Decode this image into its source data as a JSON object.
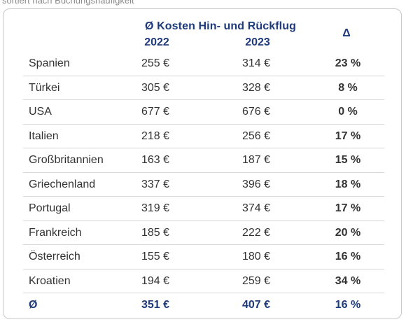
{
  "subtitle": "sortiert nach Buchungshäufigkeit",
  "header": {
    "title": "Ø Kosten Hin- und Rückflug",
    "year_2022": "2022",
    "year_2023": "2023",
    "delta": "Δ"
  },
  "rows": [
    {
      "country": "Spanien",
      "v2022": "255 €",
      "v2023": "314 €",
      "delta": "23 %"
    },
    {
      "country": "Türkei",
      "v2022": "305 €",
      "v2023": "328 €",
      "delta": "8 %"
    },
    {
      "country": "USA",
      "v2022": "677 €",
      "v2023": "676 €",
      "delta": "0 %"
    },
    {
      "country": "Italien",
      "v2022": "218 €",
      "v2023": "256 €",
      "delta": "17 %"
    },
    {
      "country": "Großbritannien",
      "v2022": "163 €",
      "v2023": "187 €",
      "delta": "15 %"
    },
    {
      "country": "Griechenland",
      "v2022": "337 €",
      "v2023": "396 €",
      "delta": "18 %"
    },
    {
      "country": "Portugal",
      "v2022": "319 €",
      "v2023": "374 €",
      "delta": "17 %"
    },
    {
      "country": "Frankreich",
      "v2022": "185 €",
      "v2023": "222 €",
      "delta": "20 %"
    },
    {
      "country": "Österreich",
      "v2022": "155 €",
      "v2023": "180 €",
      "delta": "16 %"
    },
    {
      "country": "Kroatien",
      "v2022": "194 €",
      "v2023": "259 €",
      "delta": "34 %"
    }
  ],
  "average": {
    "label": "Ø",
    "v2022": "351 €",
    "v2023": "407 €",
    "delta": "16 %"
  },
  "colors": {
    "header_text": "#1e3a7a",
    "body_text": "#333333",
    "divider": "#d8d8d8"
  }
}
